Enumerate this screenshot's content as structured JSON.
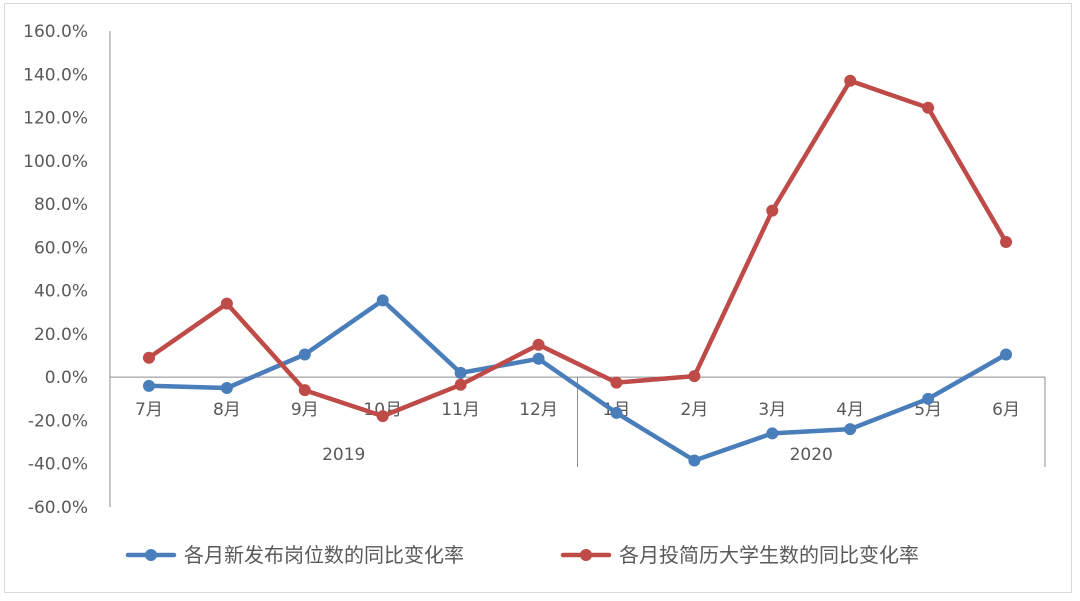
{
  "chart_data": {
    "type": "line",
    "categories": [
      "7月",
      "8月",
      "9月",
      "10月",
      "11月",
      "12月",
      "1月",
      "2月",
      "3月",
      "4月",
      "5月",
      "6月"
    ],
    "category_groups": [
      {
        "label": "2019",
        "start": 0,
        "end": 5
      },
      {
        "label": "2020",
        "start": 6,
        "end": 11
      }
    ],
    "series": [
      {
        "name": "各月新发布岗位数的同比变化率",
        "color": "#4a7ebb",
        "values": [
          -4.0,
          -5.0,
          10.5,
          35.5,
          2.0,
          8.5,
          -16.5,
          -38.5,
          -26.0,
          -24.0,
          -10.0,
          10.5
        ]
      },
      {
        "name": "各月投简历大学生数的同比变化率",
        "color": "#be4b48",
        "values": [
          9.0,
          34.0,
          -6.0,
          -18.0,
          -3.5,
          15.0,
          -2.5,
          0.5,
          77.0,
          137.0,
          124.5,
          62.5
        ]
      }
    ],
    "yticks": [
      "160.0%",
      "140.0%",
      "120.0%",
      "100.0%",
      "80.0%",
      "60.0%",
      "40.0%",
      "20.0%",
      "0.0%",
      "-20.0%",
      "-40.0%",
      "-60.0%"
    ],
    "ylim": [
      -60,
      160
    ],
    "grid": false,
    "legend_position": "bottom",
    "title": "",
    "xlabel": "",
    "ylabel": ""
  }
}
